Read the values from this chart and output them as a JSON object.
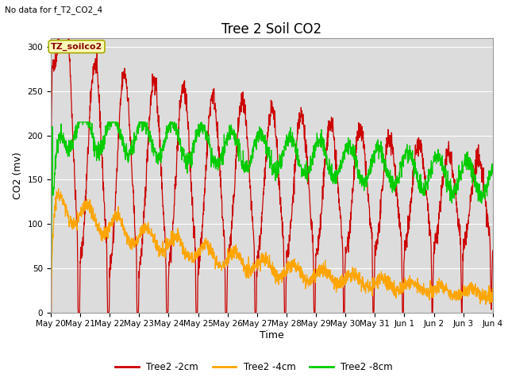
{
  "title": "Tree 2 Soil CO2",
  "subtitle": "No data for f_T2_CO2_4",
  "xlabel": "Time",
  "ylabel": "CO2 (mv)",
  "annotation": "TZ_soilco2",
  "ylim": [
    0,
    310
  ],
  "yticks": [
    0,
    50,
    100,
    150,
    200,
    250,
    300
  ],
  "bg_color": "#dcdcdc",
  "fig_color": "#ffffff",
  "color_red": "#cc0000",
  "color_orange": "#ffa500",
  "color_green": "#00cc00",
  "lw": 0.9,
  "x_tick_labels": [
    "May 20",
    "May 21",
    "May 22",
    "May 23",
    "May 24",
    "May 25",
    "May 26",
    "May 27",
    "May 28",
    "May 29",
    "May 30",
    "May 31",
    "Jun 1",
    "Jun 2",
    "Jun 3",
    "Jun 4"
  ],
  "title_fontsize": 12,
  "label_fontsize": 9,
  "tick_fontsize": 7.5,
  "legend_fontsize": 8.5
}
